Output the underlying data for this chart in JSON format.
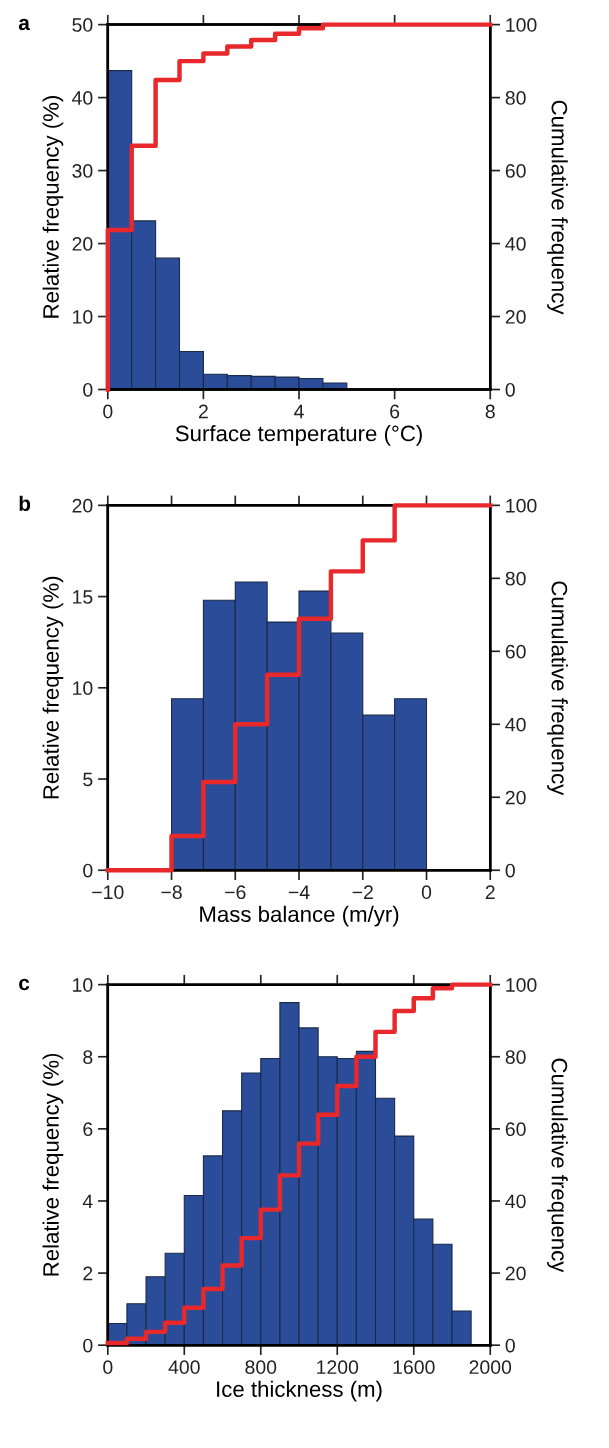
{
  "chart_data": [
    {
      "type": "histogram",
      "annotations": [
        "a"
      ],
      "xlabel": "Surface temperature (°C)",
      "ylabel": "Relative frequency (%)",
      "y2label": "Cumulative frequency",
      "bins": [
        0,
        0.5,
        1,
        1.5,
        2,
        2.5,
        3,
        3.5,
        4,
        4.5,
        5
      ],
      "values": [
        43.7,
        23.1,
        18.0,
        5.2,
        2.1,
        1.9,
        1.8,
        1.7,
        1.5,
        0.9
      ],
      "color": "#2b4c98",
      "series": [
        {
          "type": "step",
          "axis": "y2",
          "color": "#e8282b",
          "x": [
            0,
            0,
            0.5,
            1,
            1.5,
            2,
            2.5,
            3,
            3.5,
            4,
            4.5,
            5,
            8
          ],
          "values": [
            0,
            43.7,
            66.8,
            84.8,
            90.0,
            92.1,
            94.0,
            95.8,
            97.5,
            99.0,
            100,
            100,
            100
          ]
        }
      ],
      "xlim": [
        0,
        8
      ],
      "xticks": [
        0,
        2,
        4,
        6,
        8
      ],
      "ylim": [
        0,
        50
      ],
      "yticks": [
        0,
        10,
        20,
        30,
        40,
        50
      ],
      "y2lim": [
        0,
        100
      ],
      "y2ticks": [
        0,
        20,
        40,
        60,
        80,
        100
      ],
      "grid": false,
      "legend": false
    },
    {
      "type": "histogram",
      "annotations": [
        "b"
      ],
      "xlabel": "Mass balance (m/yr)",
      "ylabel": "Relative frequency (%)",
      "y2label": "Cumulative frequency",
      "bins": [
        -8,
        -7,
        -6,
        -5,
        -4,
        -3,
        -2,
        -1,
        0
      ],
      "values": [
        9.4,
        14.8,
        15.8,
        13.6,
        15.3,
        13.0,
        8.5,
        9.4
      ],
      "color": "#2b4c98",
      "series": [
        {
          "type": "step",
          "axis": "y2",
          "color": "#e8282b",
          "x": [
            -10,
            -8,
            -7,
            -6,
            -5,
            -4,
            -3,
            -2,
            -1,
            2
          ],
          "values": [
            0,
            9.4,
            24.2,
            40.0,
            53.6,
            68.9,
            81.9,
            90.4,
            100,
            100
          ]
        }
      ],
      "xlim": [
        -10,
        2
      ],
      "xticks": [
        {
          "value": -10,
          "label": "−10"
        },
        {
          "value": -8,
          "label": "−8"
        },
        {
          "value": -6,
          "label": "−6"
        },
        {
          "value": -4,
          "label": "−4"
        },
        {
          "value": -2,
          "label": "−2"
        },
        0,
        2
      ],
      "ylim": [
        0,
        20
      ],
      "yticks": [
        0,
        5,
        10,
        15,
        20
      ],
      "y2lim": [
        0,
        100
      ],
      "y2ticks": [
        0,
        20,
        40,
        60,
        80,
        100
      ],
      "grid": false,
      "legend": false
    },
    {
      "type": "histogram",
      "annotations": [
        "c"
      ],
      "xlabel": "Ice thickness (m)",
      "ylabel": "Relative frequency (%)",
      "y2label": "Cumulative frequency",
      "bins": [
        0,
        100,
        200,
        300,
        400,
        500,
        600,
        700,
        800,
        900,
        1000,
        1100,
        1200,
        1300,
        1400,
        1500,
        1600,
        1700,
        1800,
        1900
      ],
      "values": [
        0.6,
        1.15,
        1.9,
        2.55,
        4.15,
        5.25,
        6.5,
        7.55,
        7.95,
        9.5,
        8.8,
        8.0,
        7.95,
        8.15,
        6.85,
        5.8,
        3.5,
        2.8,
        0.95
      ],
      "color": "#2b4c98",
      "series": [
        {
          "type": "step",
          "axis": "y2",
          "color": "#e8282b",
          "x": [
            0,
            100,
            200,
            300,
            400,
            500,
            600,
            700,
            800,
            900,
            1000,
            1100,
            1200,
            1300,
            1400,
            1500,
            1600,
            1700,
            1800,
            1900,
            2000
          ],
          "values": [
            0.6,
            1.8,
            3.7,
            6.2,
            10.4,
            15.6,
            22.1,
            29.7,
            37.6,
            47.1,
            55.9,
            63.9,
            71.9,
            80.0,
            86.9,
            92.7,
            96.2,
            99.0,
            100,
            100,
            100
          ]
        }
      ],
      "xlim": [
        0,
        2000
      ],
      "xticks": [
        0,
        400,
        800,
        1200,
        1600,
        2000
      ],
      "ylim": [
        0,
        10
      ],
      "yticks": [
        0,
        2,
        4,
        6,
        8,
        10
      ],
      "y2lim": [
        0,
        100
      ],
      "y2ticks": [
        0,
        20,
        40,
        60,
        80,
        100
      ],
      "grid": false,
      "legend": false
    }
  ]
}
